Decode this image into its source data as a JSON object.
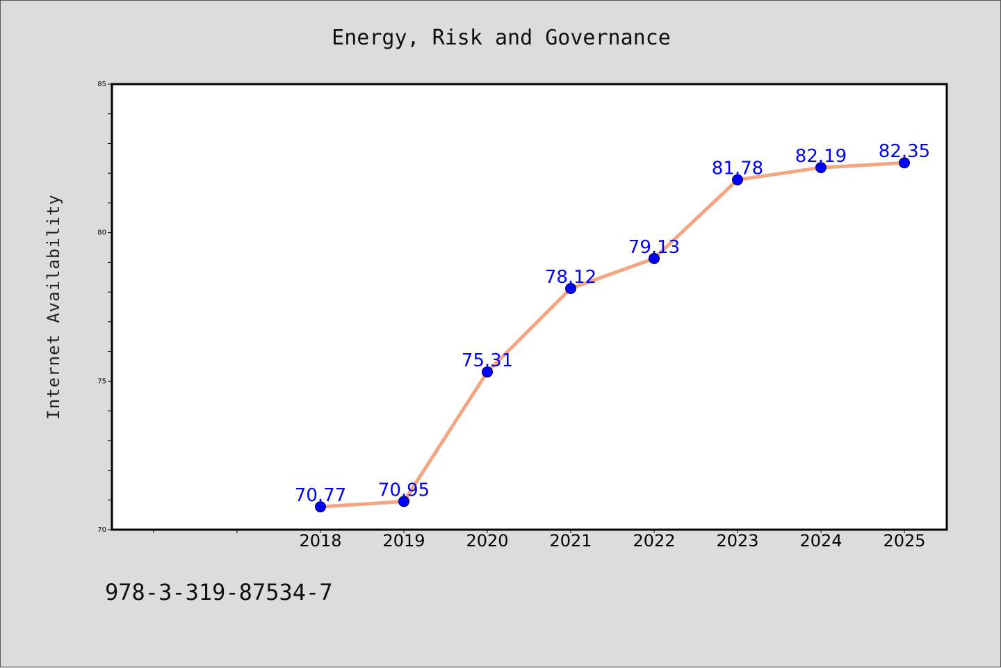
{
  "chart_data": {
    "type": "line",
    "title": "Energy, Risk and Governance",
    "xlabel": "",
    "ylabel": "Internet Availability",
    "categories": [
      "2018",
      "2019",
      "2020",
      "2021",
      "2022",
      "2023",
      "2024",
      "2025"
    ],
    "series": [
      {
        "values": [
          70.77,
          70.95,
          75.31,
          78.12,
          79.13,
          81.78,
          82.19,
          82.35
        ],
        "data_labels": [
          "70.77",
          "70.95",
          "75.31",
          "78.12",
          "79.13",
          "81.78",
          "82.19",
          "82.35"
        ],
        "line_color": "#f4a582",
        "marker_color": "#0000ff"
      }
    ],
    "ylim": [
      70,
      85
    ],
    "yticks": [
      "70",
      "75",
      "80",
      "85"
    ],
    "y_minor_step": 1,
    "x_extra_tick_slots_before": 2,
    "grid": false,
    "legend": "none",
    "label_color": "#0000ff"
  },
  "footer": {
    "isbn": "978-3-319-87534-7"
  }
}
